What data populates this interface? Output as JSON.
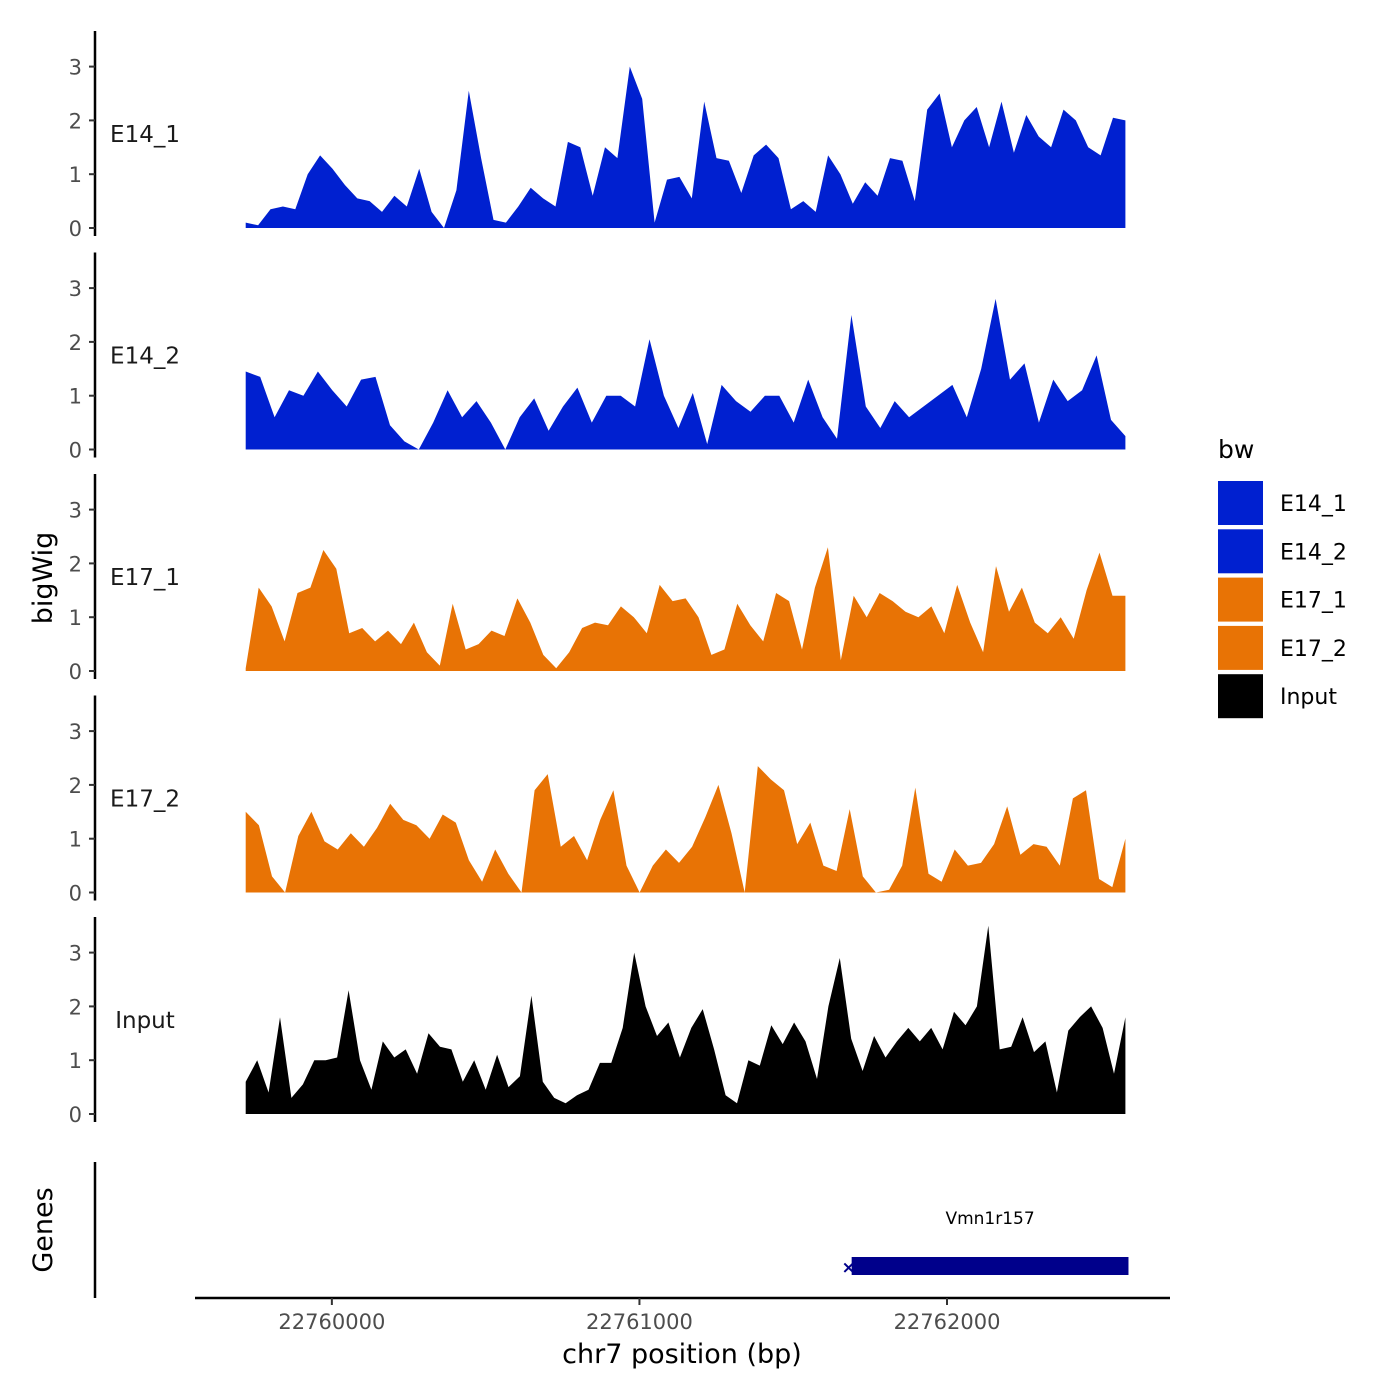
{
  "chart_data": {
    "type": "area",
    "ylabel": "bigWig",
    "xlabel": "chr7 position (bp)",
    "genes_label": "Genes",
    "ylim": [
      0,
      3.6
    ],
    "y_ticks": [
      0,
      1,
      2,
      3
    ],
    "y_tick_labels": [
      "0",
      "1",
      "2",
      "3"
    ],
    "xlim": [
      22759555,
      22762725
    ],
    "x_ticks": [
      22760000,
      22761000,
      22762000
    ],
    "x_tick_labels": [
      "22760000",
      "22761000",
      "22762000"
    ],
    "x_start": 22759720,
    "x_end": 22762580,
    "legend": {
      "title": "bw",
      "position": "right",
      "entries": [
        {
          "name": "E14_1",
          "color": "#0020D0"
        },
        {
          "name": "E14_2",
          "color": "#0020D0"
        },
        {
          "name": "E17_1",
          "color": "#E87305"
        },
        {
          "name": "E17_2",
          "color": "#E87305"
        },
        {
          "name": "Input",
          "color": "#000000"
        }
      ]
    },
    "series": [
      {
        "name": "E14_1",
        "color": "#0020D0",
        "values": [
          0.1,
          0.05,
          0.35,
          0.4,
          0.35,
          1.0,
          1.35,
          1.1,
          0.8,
          0.55,
          0.5,
          0.3,
          0.6,
          0.4,
          1.1,
          0.3,
          0.0,
          0.7,
          2.55,
          1.3,
          0.15,
          0.1,
          0.4,
          0.75,
          0.55,
          0.4,
          1.6,
          1.5,
          0.6,
          1.5,
          1.3,
          3.0,
          2.4,
          0.1,
          0.9,
          0.95,
          0.55,
          2.35,
          1.3,
          1.25,
          0.65,
          1.35,
          1.55,
          1.3,
          0.35,
          0.5,
          0.3,
          1.35,
          1.0,
          0.45,
          0.85,
          0.6,
          1.3,
          1.25,
          0.5,
          2.2,
          2.5,
          1.5,
          2.0,
          2.25,
          1.5,
          2.35,
          1.4,
          2.1,
          1.7,
          1.5,
          2.2,
          2.0,
          1.5,
          1.35,
          2.05,
          2.0
        ]
      },
      {
        "name": "E14_2",
        "color": "#0020D0",
        "values": [
          1.45,
          1.35,
          0.6,
          1.1,
          1.0,
          1.45,
          1.1,
          0.8,
          1.3,
          1.35,
          0.45,
          0.15,
          0.0,
          0.5,
          1.1,
          0.6,
          0.9,
          0.5,
          0.0,
          0.6,
          0.95,
          0.35,
          0.8,
          1.15,
          0.5,
          1.0,
          1.0,
          0.8,
          2.05,
          1.0,
          0.4,
          1.05,
          0.1,
          1.2,
          0.9,
          0.7,
          1.0,
          1.0,
          0.5,
          1.3,
          0.6,
          0.2,
          2.5,
          0.8,
          0.4,
          0.9,
          0.6,
          0.8,
          1.0,
          1.2,
          0.6,
          1.5,
          2.8,
          1.3,
          1.6,
          0.5,
          1.3,
          0.9,
          1.1,
          1.75,
          0.55,
          0.25
        ]
      },
      {
        "name": "E17_1",
        "color": "#E87305",
        "values": [
          0.05,
          1.55,
          1.2,
          0.55,
          1.45,
          1.55,
          2.25,
          1.9,
          0.7,
          0.8,
          0.55,
          0.75,
          0.5,
          0.9,
          0.35,
          0.1,
          1.25,
          0.4,
          0.5,
          0.75,
          0.65,
          1.35,
          0.9,
          0.3,
          0.05,
          0.35,
          0.8,
          0.9,
          0.85,
          1.2,
          1.0,
          0.7,
          1.6,
          1.3,
          1.35,
          1.0,
          0.3,
          0.4,
          1.25,
          0.85,
          0.55,
          1.45,
          1.3,
          0.4,
          1.55,
          2.3,
          0.2,
          1.4,
          1.0,
          1.45,
          1.3,
          1.1,
          1.0,
          1.2,
          0.7,
          1.6,
          0.9,
          0.35,
          1.95,
          1.1,
          1.55,
          0.9,
          0.7,
          1.0,
          0.6,
          1.5,
          2.2,
          1.4,
          1.4
        ]
      },
      {
        "name": "E17_2",
        "color": "#E87305",
        "values": [
          1.5,
          1.25,
          0.3,
          0.0,
          1.05,
          1.5,
          0.95,
          0.8,
          1.1,
          0.85,
          1.2,
          1.65,
          1.35,
          1.25,
          1.0,
          1.45,
          1.3,
          0.6,
          0.2,
          0.8,
          0.35,
          0.0,
          1.9,
          2.2,
          0.85,
          1.05,
          0.6,
          1.35,
          1.9,
          0.5,
          0.0,
          0.5,
          0.8,
          0.55,
          0.85,
          1.4,
          2.0,
          1.1,
          0.0,
          2.35,
          2.1,
          1.9,
          0.9,
          1.3,
          0.5,
          0.4,
          1.55,
          0.3,
          0.0,
          0.05,
          0.5,
          1.95,
          0.35,
          0.2,
          0.8,
          0.5,
          0.55,
          0.9,
          1.6,
          0.7,
          0.9,
          0.85,
          0.5,
          1.75,
          1.9,
          0.25,
          0.1,
          1.0
        ]
      },
      {
        "name": "Input",
        "color": "#000000",
        "values": [
          0.6,
          1.0,
          0.4,
          1.8,
          0.3,
          0.55,
          1.0,
          1.0,
          1.05,
          2.3,
          1.0,
          0.45,
          1.35,
          1.05,
          1.2,
          0.75,
          1.5,
          1.25,
          1.2,
          0.6,
          1.0,
          0.45,
          1.1,
          0.5,
          0.7,
          2.2,
          0.6,
          0.3,
          0.2,
          0.35,
          0.45,
          0.95,
          0.95,
          1.6,
          3.0,
          2.0,
          1.45,
          1.7,
          1.05,
          1.6,
          1.95,
          1.2,
          0.35,
          0.2,
          1.0,
          0.9,
          1.65,
          1.3,
          1.7,
          1.35,
          0.65,
          2.0,
          2.9,
          1.4,
          0.8,
          1.45,
          1.05,
          1.35,
          1.6,
          1.35,
          1.6,
          1.2,
          1.9,
          1.65,
          2.0,
          3.5,
          1.2,
          1.25,
          1.8,
          1.15,
          1.35,
          0.4,
          1.55,
          1.8,
          2.0,
          1.6,
          0.75,
          1.8
        ]
      }
    ],
    "genes": [
      {
        "name": "Vmn1r157",
        "start": 22761690,
        "end": 22762590,
        "strand": "-",
        "color": "#00008B"
      }
    ]
  }
}
